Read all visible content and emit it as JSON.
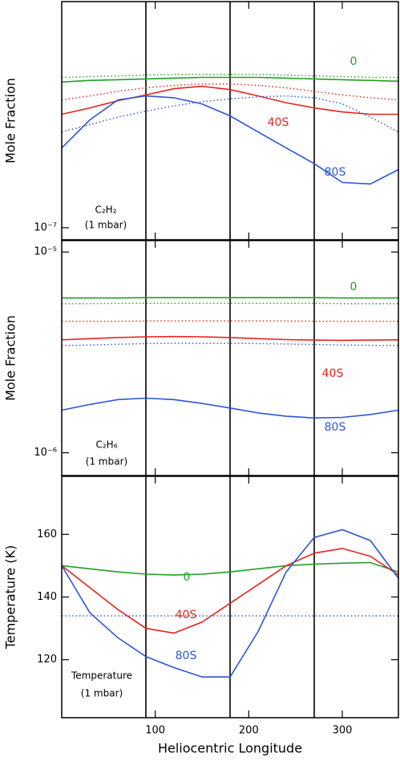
{
  "chart_data": [
    {
      "type": "line",
      "ylabel": "Mole Fraction",
      "log": true,
      "xlim": [
        0,
        360
      ],
      "xticks": [
        100,
        200,
        300
      ],
      "vlines": [
        90,
        180,
        270
      ],
      "ylim": [
        8.7e-08,
        1.37e-06
      ],
      "yticks": [
        {
          "value": 1e-07,
          "label": "10⁻⁷"
        }
      ],
      "annotations": [
        "C₂H₂",
        "(1 mbar)"
      ],
      "x": [
        0,
        30,
        60,
        90,
        120,
        150,
        180,
        210,
        240,
        270,
        300,
        330,
        360
      ],
      "series": [
        {
          "name": "0",
          "color": "#22a022",
          "style": "solid",
          "values": [
            5.4e-07,
            5.5e-07,
            5.55e-07,
            5.6e-07,
            5.65e-07,
            5.7e-07,
            5.7e-07,
            5.7e-07,
            5.65e-07,
            5.6e-07,
            5.55e-07,
            5.5e-07,
            5.45e-07
          ]
        },
        {
          "color": "#22a022",
          "style": "dotted",
          "values": [
            5.7e-07,
            5.75e-07,
            5.8e-07,
            5.85e-07,
            5.9e-07,
            5.9e-07,
            5.9e-07,
            5.9e-07,
            5.85e-07,
            5.8e-07,
            5.75e-07,
            5.7e-07,
            5.7e-07
          ]
        },
        {
          "name": "40S",
          "color": "#e8231c",
          "style": "solid",
          "values": [
            3.72e-07,
            4e-07,
            4.35e-07,
            4.65e-07,
            5e-07,
            5.14e-07,
            4.95e-07,
            4.6e-07,
            4.25e-07,
            4e-07,
            3.82e-07,
            3.72e-07,
            3.72e-07
          ]
        },
        {
          "color": "#e8231c",
          "style": "dotted",
          "values": [
            4.39e-07,
            4.6e-07,
            4.85e-07,
            5.05e-07,
            5.2e-07,
            5.28e-07,
            5.28e-07,
            5.2e-07,
            5.05e-07,
            4.85e-07,
            4.65e-07,
            4.5e-07,
            4.39e-07
          ]
        },
        {
          "name": "80S",
          "color": "#2e55d6",
          "style": "solid",
          "values": [
            2.52e-07,
            3.48e-07,
            4.39e-07,
            4.6e-07,
            4.5e-07,
            4.19e-07,
            3.65e-07,
            3.03e-07,
            2.52e-07,
            2.1e-07,
            1.69e-07,
            1.66e-07,
            1.96e-07
          ]
        },
        {
          "color": "#2e55d6",
          "style": "dotted",
          "values": [
            3.03e-07,
            3.3e-07,
            3.6e-07,
            3.85e-07,
            4.1e-07,
            4.3e-07,
            4.45e-07,
            4.55e-07,
            4.6e-07,
            4.5e-07,
            4.2e-07,
            3.6e-07,
            3.03e-07
          ]
        }
      ]
    },
    {
      "type": "line",
      "ylabel": "Mole Fraction",
      "log": true,
      "xlim": [
        0,
        360
      ],
      "xticks": [
        100,
        200,
        300
      ],
      "vlines": [
        90,
        180,
        270
      ],
      "ylim": [
        7.7e-07,
        1.14e-05
      ],
      "yticks": [
        {
          "value": 1e-06,
          "label": "10⁻⁶"
        },
        {
          "value": 1e-05,
          "label": "10⁻⁵"
        }
      ],
      "annotations": [
        "C₂H₆",
        "(1 mbar)"
      ],
      "x": [
        0,
        30,
        60,
        90,
        120,
        150,
        180,
        210,
        240,
        270,
        300,
        330,
        360
      ],
      "series": [
        {
          "name": "0",
          "color": "#22a022",
          "style": "solid",
          "values": [
            5.9e-06,
            5.9e-06,
            5.9e-06,
            5.92e-06,
            5.92e-06,
            5.92e-06,
            5.92e-06,
            5.92e-06,
            5.92e-06,
            5.92e-06,
            5.9e-06,
            5.9e-06,
            5.9e-06
          ]
        },
        {
          "color": "#22a022",
          "style": "dotted",
          "values": [
            5.53e-06,
            5.53e-06,
            5.55e-06,
            5.55e-06,
            5.55e-06,
            5.55e-06,
            5.55e-06,
            5.55e-06,
            5.55e-06,
            5.55e-06,
            5.53e-06,
            5.53e-06,
            5.53e-06
          ]
        },
        {
          "color": "#e8231c",
          "style": "dotted",
          "values": [
            4.52e-06,
            4.52e-06,
            4.52e-06,
            4.53e-06,
            4.53e-06,
            4.53e-06,
            4.53e-06,
            4.53e-06,
            4.53e-06,
            4.52e-06,
            4.52e-06,
            4.52e-06,
            4.52e-06
          ]
        },
        {
          "name": "40S",
          "color": "#e8231c",
          "style": "solid",
          "values": [
            3.65e-06,
            3.7e-06,
            3.75e-06,
            3.78e-06,
            3.79e-06,
            3.78e-06,
            3.75e-06,
            3.7e-06,
            3.66e-06,
            3.64e-06,
            3.63e-06,
            3.64e-06,
            3.65e-06
          ]
        },
        {
          "color": "#2e55d6",
          "style": "dotted",
          "values": [
            3.42e-06,
            3.44e-06,
            3.47e-06,
            3.5e-06,
            3.51e-06,
            3.51e-06,
            3.51e-06,
            3.5e-06,
            3.48e-06,
            3.46e-06,
            3.44e-06,
            3.43e-06,
            3.42e-06
          ]
        },
        {
          "name": "80S",
          "color": "#2e55d6",
          "style": "solid",
          "values": [
            1.63e-06,
            1.74e-06,
            1.84e-06,
            1.87e-06,
            1.84e-06,
            1.76e-06,
            1.67e-06,
            1.58e-06,
            1.52e-06,
            1.49e-06,
            1.5e-06,
            1.55e-06,
            1.63e-06
          ]
        }
      ]
    },
    {
      "type": "line",
      "ylabel": "Temperature (K)",
      "xlabel": "Heliocentric Longitude",
      "log": false,
      "xlim": [
        0,
        360
      ],
      "xticks": [
        100,
        200,
        300
      ],
      "vlines": [
        90,
        180,
        270
      ],
      "ylim": [
        101.5,
        178.5
      ],
      "yticks": [
        120,
        140,
        160
      ],
      "annotations": [
        "Temperature",
        "(1 mbar)"
      ],
      "x": [
        0,
        30,
        60,
        90,
        120,
        150,
        180,
        210,
        240,
        270,
        300,
        330,
        360
      ],
      "series": [
        {
          "name": "0",
          "color": "#22a022",
          "style": "solid",
          "values": [
            150,
            149,
            148,
            147.3,
            147,
            147.3,
            148,
            149,
            150,
            150.5,
            150.8,
            151,
            148
          ]
        },
        {
          "name": "40S",
          "color": "#e8231c",
          "style": "solid",
          "values": [
            150,
            143,
            136,
            130,
            128.5,
            132,
            138,
            144,
            150,
            154,
            155.5,
            153,
            147
          ]
        },
        {
          "name": "80S",
          "color": "#2e55d6",
          "style": "solid",
          "values": [
            150,
            135,
            127,
            121,
            117.5,
            114.5,
            114.5,
            129,
            148,
            159,
            161.5,
            158,
            146
          ]
        },
        {
          "color": "#2e55d6",
          "style": "dotted",
          "values": [
            134,
            134,
            134,
            134,
            134,
            134,
            134,
            134,
            134,
            134,
            134,
            134,
            134
          ]
        }
      ]
    }
  ]
}
